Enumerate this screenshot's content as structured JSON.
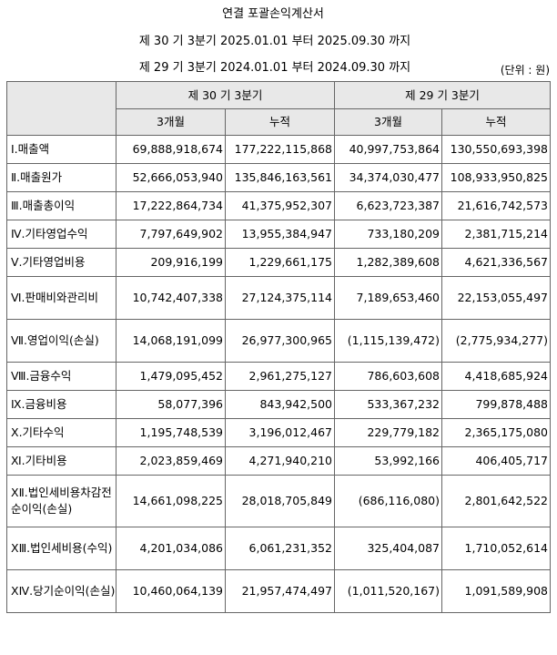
{
  "header": {
    "title": "연결 포괄손익계산서",
    "period_current": "제 30 기 3분기 2025.01.01 부터 2025.09.30 까지",
    "period_prior": "제 29 기 3분기 2024.01.01 부터 2024.09.30 까지",
    "unit": "(단위 : 원)"
  },
  "table": {
    "group_current": "제 30 기 3분기",
    "group_prior": "제 29 기 3분기",
    "sub_3m": "3개월",
    "sub_cum": "누적",
    "rows": [
      {
        "label": "Ⅰ.매출액",
        "c3m": "69,888,918,674",
        "ccum": "177,222,115,868",
        "p3m": "40,997,753,864",
        "pcum": "130,550,693,398"
      },
      {
        "label": "Ⅱ.매출원가",
        "c3m": "52,666,053,940",
        "ccum": "135,846,163,561",
        "p3m": "34,374,030,477",
        "pcum": "108,933,950,825"
      },
      {
        "label": "Ⅲ.매출총이익",
        "c3m": "17,222,864,734",
        "ccum": "41,375,952,307",
        "p3m": "6,623,723,387",
        "pcum": "21,616,742,573"
      },
      {
        "label": "Ⅳ.기타영업수익",
        "c3m": "7,797,649,902",
        "ccum": "13,955,384,947",
        "p3m": "733,180,209",
        "pcum": "2,381,715,214"
      },
      {
        "label": "Ⅴ.기타영업비용",
        "c3m": "209,916,199",
        "ccum": "1,229,661,175",
        "p3m": "1,282,389,608",
        "pcum": "4,621,336,567"
      },
      {
        "label": "Ⅵ.판매비와관리비",
        "c3m": "10,742,407,338",
        "ccum": "27,124,375,114",
        "p3m": "7,189,653,460",
        "pcum": "22,153,055,497"
      },
      {
        "label": "Ⅶ.영업이익(손실)",
        "c3m": "14,068,191,099",
        "ccum": "26,977,300,965",
        "p3m": "(1,115,139,472)",
        "pcum": "(2,775,934,277)"
      },
      {
        "label": "Ⅷ.금융수익",
        "c3m": "1,479,095,452",
        "ccum": "2,961,275,127",
        "p3m": "786,603,608",
        "pcum": "4,418,685,924"
      },
      {
        "label": "Ⅸ.금융비용",
        "c3m": "58,077,396",
        "ccum": "843,942,500",
        "p3m": "533,367,232",
        "pcum": "799,878,488"
      },
      {
        "label": "Ⅹ.기타수익",
        "c3m": "1,195,748,539",
        "ccum": "3,196,012,467",
        "p3m": "229,779,182",
        "pcum": "2,365,175,080"
      },
      {
        "label": "Ⅺ.기타비용",
        "c3m": "2,023,859,469",
        "ccum": "4,271,940,210",
        "p3m": "53,992,166",
        "pcum": "406,405,717"
      },
      {
        "label": "ⅩⅡ.법인세비용차감전순이익(손실)",
        "c3m": "14,661,098,225",
        "ccum": "28,018,705,849",
        "p3m": "(686,116,080)",
        "pcum": "2,801,642,522"
      },
      {
        "label": "ⅩⅢ.법인세비용(수익)",
        "c3m": "4,201,034,086",
        "ccum": "6,061,231,352",
        "p3m": "325,404,087",
        "pcum": "1,710,052,614"
      },
      {
        "label": "ⅩⅣ.당기순이익(손실)",
        "c3m": "10,460,064,139",
        "ccum": "21,957,474,497",
        "p3m": "(1,011,520,167)",
        "pcum": "1,091,589,908"
      }
    ]
  }
}
